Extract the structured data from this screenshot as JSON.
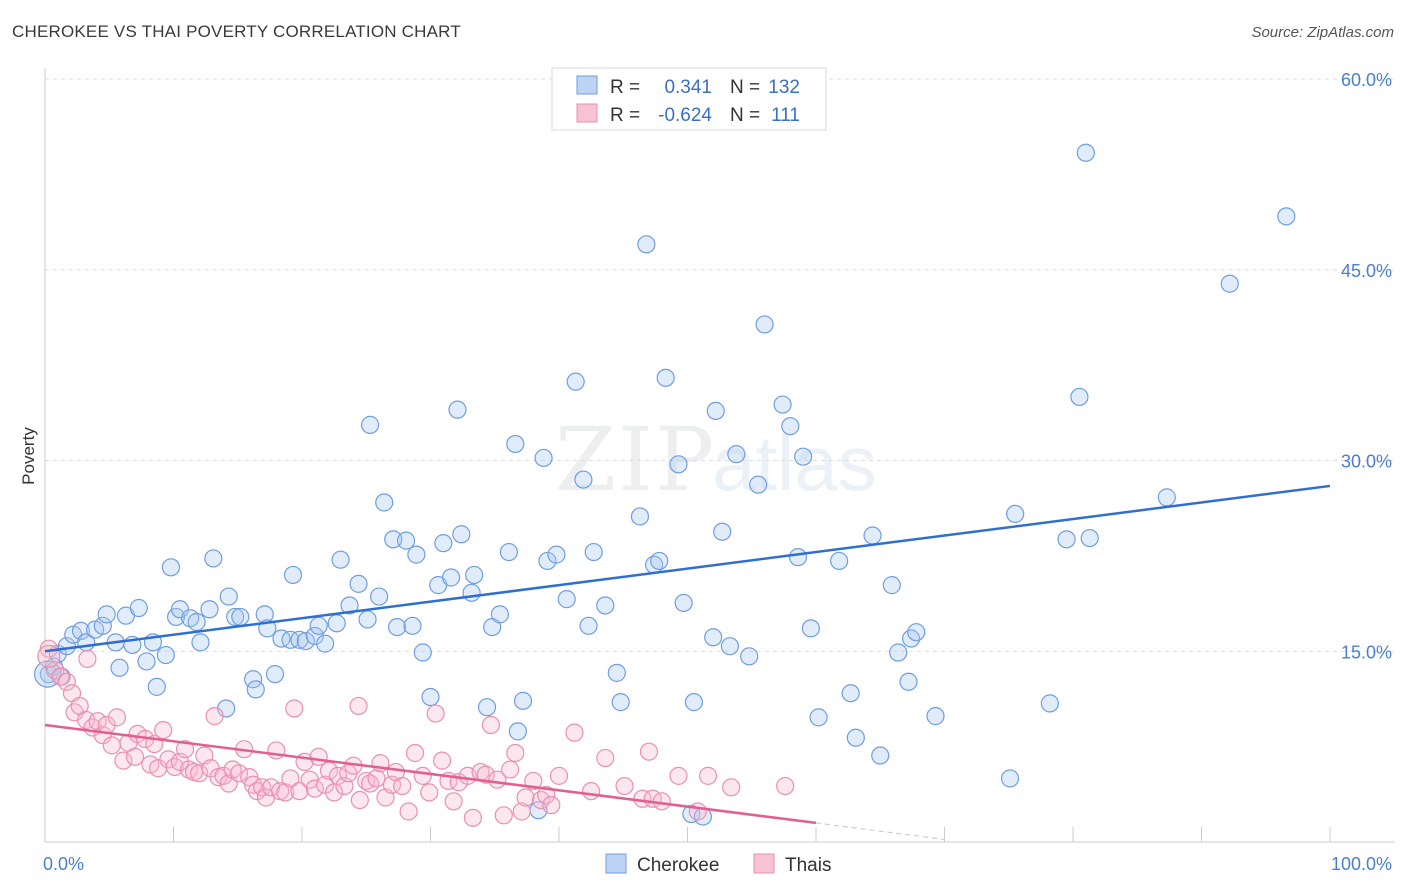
{
  "title": "CHEROKEE VS THAI POVERTY CORRELATION CHART",
  "source": "Source: ZipAtlas.com",
  "colors": {
    "blue": "#4a7fd0",
    "blue_line": "#2f6fd0",
    "pink": "#e87aa0",
    "pink_line": "#e0608f"
  },
  "legend": [
    {
      "r_label": "R =",
      "r_value": "0.341",
      "n_label": "N =",
      "n_value": "132"
    },
    {
      "r_label": "R =",
      "r_value": "-0.624",
      "n_label": "N =",
      "n_value": "111"
    }
  ],
  "chart_data": {
    "type": "scatter",
    "xlabel": "",
    "ylabel": "Poverty",
    "xlim": [
      0,
      100
    ],
    "ylim": [
      0,
      60
    ],
    "x_tick_labels": [
      "0.0%",
      "100.0%"
    ],
    "y_ticks": [
      15,
      30,
      45,
      60
    ],
    "y_tick_labels": [
      "15.0%",
      "30.0%",
      "45.0%",
      "60.0%"
    ],
    "legend_position": "top-center",
    "series": [
      {
        "name": "Cherokee",
        "trend": [
          [
            0,
            15.0
          ],
          [
            100,
            28.0
          ]
        ],
        "points": [
          [
            0.3,
            13.2
          ],
          [
            0.7,
            13.8
          ],
          [
            1.0,
            14.8
          ],
          [
            1.3,
            13.0
          ],
          [
            1.7,
            15.4
          ],
          [
            2.2,
            16.3
          ],
          [
            2.8,
            16.6
          ],
          [
            3.2,
            15.7
          ],
          [
            3.9,
            16.7
          ],
          [
            4.5,
            17.0
          ],
          [
            4.8,
            17.9
          ],
          [
            5.5,
            15.7
          ],
          [
            5.8,
            13.7
          ],
          [
            6.3,
            17.8
          ],
          [
            6.8,
            15.5
          ],
          [
            7.3,
            18.4
          ],
          [
            7.9,
            14.2
          ],
          [
            8.4,
            15.7
          ],
          [
            8.7,
            12.2
          ],
          [
            9.4,
            14.7
          ],
          [
            9.8,
            21.6
          ],
          [
            10.2,
            17.7
          ],
          [
            10.5,
            18.3
          ],
          [
            11.3,
            17.6
          ],
          [
            11.8,
            17.3
          ],
          [
            12.1,
            15.7
          ],
          [
            12.8,
            18.3
          ],
          [
            13.1,
            22.3
          ],
          [
            14.1,
            10.5
          ],
          [
            14.3,
            19.3
          ],
          [
            14.8,
            17.7
          ],
          [
            15.2,
            17.7
          ],
          [
            16.2,
            12.8
          ],
          [
            16.4,
            12.0
          ],
          [
            17.1,
            17.9
          ],
          [
            17.3,
            16.8
          ],
          [
            17.9,
            13.2
          ],
          [
            18.4,
            16.0
          ],
          [
            19.1,
            15.9
          ],
          [
            19.3,
            21.0
          ],
          [
            19.8,
            15.9
          ],
          [
            20.3,
            15.8
          ],
          [
            21.0,
            16.2
          ],
          [
            21.3,
            17.0
          ],
          [
            21.8,
            15.6
          ],
          [
            22.7,
            17.2
          ],
          [
            23.0,
            22.2
          ],
          [
            23.7,
            18.6
          ],
          [
            24.4,
            20.3
          ],
          [
            25.1,
            17.5
          ],
          [
            25.3,
            32.8
          ],
          [
            26.0,
            19.3
          ],
          [
            26.4,
            26.7
          ],
          [
            27.1,
            23.8
          ],
          [
            27.4,
            16.9
          ],
          [
            28.1,
            23.7
          ],
          [
            28.6,
            17.0
          ],
          [
            28.9,
            22.6
          ],
          [
            29.4,
            14.9
          ],
          [
            30.0,
            11.4
          ],
          [
            30.6,
            20.2
          ],
          [
            31.0,
            23.5
          ],
          [
            31.6,
            20.8
          ],
          [
            32.1,
            34.0
          ],
          [
            32.4,
            24.2
          ],
          [
            33.2,
            19.6
          ],
          [
            33.4,
            21.0
          ],
          [
            34.4,
            10.6
          ],
          [
            34.8,
            16.9
          ],
          [
            35.4,
            17.9
          ],
          [
            36.1,
            22.8
          ],
          [
            36.6,
            31.3
          ],
          [
            37.2,
            11.1
          ],
          [
            36.8,
            8.7
          ],
          [
            38.4,
            2.5
          ],
          [
            38.8,
            30.2
          ],
          [
            39.1,
            22.1
          ],
          [
            39.8,
            22.6
          ],
          [
            40.6,
            19.1
          ],
          [
            41.3,
            36.2
          ],
          [
            41.9,
            28.5
          ],
          [
            42.3,
            17.0
          ],
          [
            42.7,
            22.8
          ],
          [
            43.6,
            18.6
          ],
          [
            44.5,
            13.3
          ],
          [
            44.8,
            11.0
          ],
          [
            46.3,
            25.6
          ],
          [
            46.8,
            47.0
          ],
          [
            47.4,
            21.8
          ],
          [
            47.8,
            22.1
          ],
          [
            48.3,
            36.5
          ],
          [
            49.3,
            29.7
          ],
          [
            49.7,
            18.8
          ],
          [
            50.3,
            2.2
          ],
          [
            50.5,
            11.0
          ],
          [
            51.2,
            2.0
          ],
          [
            52.0,
            16.1
          ],
          [
            52.2,
            33.9
          ],
          [
            52.7,
            24.4
          ],
          [
            53.3,
            15.4
          ],
          [
            53.8,
            30.5
          ],
          [
            54.8,
            14.6
          ],
          [
            55.5,
            28.1
          ],
          [
            56.0,
            40.7
          ],
          [
            57.4,
            34.4
          ],
          [
            58.0,
            32.7
          ],
          [
            58.6,
            22.4
          ],
          [
            59.0,
            30.3
          ],
          [
            59.6,
            16.8
          ],
          [
            60.2,
            9.8
          ],
          [
            61.8,
            22.1
          ],
          [
            62.7,
            11.7
          ],
          [
            63.1,
            8.2
          ],
          [
            64.4,
            24.1
          ],
          [
            65.0,
            6.8
          ],
          [
            65.9,
            20.2
          ],
          [
            66.4,
            14.9
          ],
          [
            67.2,
            12.6
          ],
          [
            67.4,
            16.0
          ],
          [
            67.8,
            16.5
          ],
          [
            69.3,
            9.9
          ],
          [
            75.1,
            5.0
          ],
          [
            75.5,
            25.8
          ],
          [
            78.2,
            10.9
          ],
          [
            79.5,
            23.8
          ],
          [
            80.5,
            35.0
          ],
          [
            81.3,
            23.9
          ],
          [
            81.0,
            54.2
          ],
          [
            87.3,
            27.1
          ],
          [
            92.2,
            43.9
          ],
          [
            96.6,
            49.2
          ]
        ]
      },
      {
        "name": "Thais",
        "trend": [
          [
            0,
            9.2
          ],
          [
            60,
            1.5
          ]
        ],
        "dashed_extension": [
          [
            60,
            1.5
          ],
          [
            70,
            0.2
          ]
        ],
        "points": [
          [
            0.3,
            15.2
          ],
          [
            0.8,
            13.5
          ],
          [
            1.2,
            13.0
          ],
          [
            1.7,
            12.6
          ],
          [
            2.1,
            11.7
          ],
          [
            2.3,
            10.2
          ],
          [
            2.7,
            10.7
          ],
          [
            3.2,
            9.6
          ],
          [
            3.7,
            9.0
          ],
          [
            4.1,
            9.5
          ],
          [
            4.5,
            8.4
          ],
          [
            4.8,
            9.2
          ],
          [
            5.2,
            7.6
          ],
          [
            5.6,
            9.8
          ],
          [
            6.1,
            6.4
          ],
          [
            6.5,
            7.8
          ],
          [
            7.0,
            6.7
          ],
          [
            7.2,
            8.5
          ],
          [
            7.8,
            8.1
          ],
          [
            8.2,
            6.1
          ],
          [
            8.5,
            7.7
          ],
          [
            8.8,
            5.8
          ],
          [
            9.2,
            8.8
          ],
          [
            9.6,
            6.5
          ],
          [
            10.1,
            5.9
          ],
          [
            10.5,
            6.3
          ],
          [
            10.9,
            7.3
          ],
          [
            11.2,
            5.7
          ],
          [
            11.6,
            5.5
          ],
          [
            12.0,
            5.4
          ],
          [
            12.4,
            6.8
          ],
          [
            12.9,
            5.8
          ],
          [
            13.2,
            9.9
          ],
          [
            13.5,
            5.1
          ],
          [
            13.9,
            5.2
          ],
          [
            14.3,
            4.6
          ],
          [
            14.6,
            5.7
          ],
          [
            15.1,
            5.4
          ],
          [
            15.5,
            7.3
          ],
          [
            15.9,
            5.1
          ],
          [
            16.2,
            4.5
          ],
          [
            16.5,
            4.0
          ],
          [
            16.9,
            4.3
          ],
          [
            17.2,
            3.5
          ],
          [
            17.6,
            4.3
          ],
          [
            18.0,
            7.2
          ],
          [
            18.3,
            4.0
          ],
          [
            18.7,
            3.9
          ],
          [
            19.1,
            5.0
          ],
          [
            19.4,
            10.5
          ],
          [
            19.8,
            4.0
          ],
          [
            20.2,
            6.3
          ],
          [
            20.6,
            4.9
          ],
          [
            21.0,
            4.2
          ],
          [
            21.3,
            6.7
          ],
          [
            21.8,
            4.5
          ],
          [
            22.1,
            5.6
          ],
          [
            22.5,
            3.9
          ],
          [
            22.8,
            5.2
          ],
          [
            23.3,
            4.4
          ],
          [
            23.6,
            5.4
          ],
          [
            24.0,
            6.0
          ],
          [
            24.5,
            3.3
          ],
          [
            25.0,
            4.8
          ],
          [
            25.3,
            4.6
          ],
          [
            25.8,
            5.0
          ],
          [
            26.1,
            6.2
          ],
          [
            26.5,
            3.5
          ],
          [
            27.0,
            4.5
          ],
          [
            27.3,
            5.5
          ],
          [
            27.8,
            4.4
          ],
          [
            28.3,
            2.4
          ],
          [
            28.8,
            7.0
          ],
          [
            29.4,
            5.2
          ],
          [
            29.9,
            3.9
          ],
          [
            30.4,
            10.1
          ],
          [
            30.9,
            6.4
          ],
          [
            31.4,
            4.8
          ],
          [
            31.8,
            3.2
          ],
          [
            32.2,
            4.7
          ],
          [
            32.9,
            5.2
          ],
          [
            33.3,
            1.9
          ],
          [
            33.9,
            5.5
          ],
          [
            34.3,
            5.3
          ],
          [
            34.7,
            9.2
          ],
          [
            35.2,
            4.9
          ],
          [
            35.7,
            2.1
          ],
          [
            36.2,
            5.7
          ],
          [
            36.6,
            7.0
          ],
          [
            37.1,
            2.4
          ],
          [
            37.4,
            3.5
          ],
          [
            38.0,
            4.8
          ],
          [
            38.6,
            3.3
          ],
          [
            39.0,
            3.7
          ],
          [
            39.4,
            2.9
          ],
          [
            40.0,
            5.2
          ],
          [
            41.2,
            8.6
          ],
          [
            42.5,
            4.0
          ],
          [
            43.6,
            6.6
          ],
          [
            45.1,
            4.4
          ],
          [
            46.5,
            3.4
          ],
          [
            47.3,
            3.4
          ],
          [
            48.0,
            3.2
          ],
          [
            49.3,
            5.2
          ],
          [
            50.8,
            2.4
          ],
          [
            51.6,
            5.2
          ],
          [
            53.4,
            4.3
          ],
          [
            57.6,
            4.4
          ],
          [
            47.0,
            7.1
          ],
          [
            24.4,
            10.7
          ],
          [
            3.3,
            14.4
          ]
        ]
      }
    ]
  }
}
